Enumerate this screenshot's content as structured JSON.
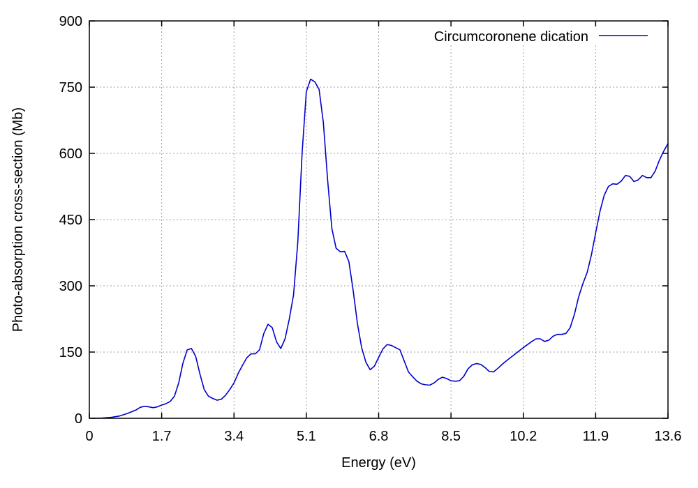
{
  "chart_data": {
    "type": "line",
    "title": "",
    "xlabel": "Energy (eV)",
    "ylabel": "Photo-absorption cross-section (Mb)",
    "xlim": [
      0,
      13.6
    ],
    "ylim": [
      0,
      900
    ],
    "xticks": [
      0,
      1.7,
      3.4,
      5.1,
      6.8,
      8.5,
      10.2,
      11.9,
      13.6
    ],
    "xtick_labels": [
      "0",
      "1.7",
      "3.4",
      "5.1",
      "6.8",
      "8.5",
      "10.2",
      "11.9",
      "13.6"
    ],
    "yticks": [
      0,
      150,
      300,
      450,
      600,
      750,
      900
    ],
    "ytick_labels": [
      "0",
      "150",
      "300",
      "450",
      "600",
      "750",
      "900"
    ],
    "grid": true,
    "legend_position": "top-right",
    "series": [
      {
        "name": "Circumcoronene dication",
        "color": "#0000cc",
        "points": [
          [
            0.1,
            0
          ],
          [
            0.3,
            0.5
          ],
          [
            0.5,
            2
          ],
          [
            0.7,
            5
          ],
          [
            0.9,
            11
          ],
          [
            1.1,
            19
          ],
          [
            1.2,
            25
          ],
          [
            1.3,
            27
          ],
          [
            1.4,
            26
          ],
          [
            1.5,
            24
          ],
          [
            1.6,
            26
          ],
          [
            1.7,
            30
          ],
          [
            1.8,
            33
          ],
          [
            1.9,
            38
          ],
          [
            2.0,
            50
          ],
          [
            2.1,
            80
          ],
          [
            2.2,
            125
          ],
          [
            2.3,
            155
          ],
          [
            2.4,
            158
          ],
          [
            2.5,
            140
          ],
          [
            2.6,
            100
          ],
          [
            2.7,
            65
          ],
          [
            2.8,
            50
          ],
          [
            2.9,
            45
          ],
          [
            3.0,
            41
          ],
          [
            3.1,
            43
          ],
          [
            3.2,
            52
          ],
          [
            3.3,
            65
          ],
          [
            3.4,
            80
          ],
          [
            3.5,
            102
          ],
          [
            3.6,
            120
          ],
          [
            3.7,
            137
          ],
          [
            3.8,
            146
          ],
          [
            3.9,
            146
          ],
          [
            4.0,
            155
          ],
          [
            4.1,
            192
          ],
          [
            4.2,
            213
          ],
          [
            4.3,
            205
          ],
          [
            4.4,
            173
          ],
          [
            4.5,
            158
          ],
          [
            4.6,
            180
          ],
          [
            4.7,
            225
          ],
          [
            4.8,
            280
          ],
          [
            4.9,
            400
          ],
          [
            5.0,
            600
          ],
          [
            5.1,
            740
          ],
          [
            5.2,
            768
          ],
          [
            5.3,
            762
          ],
          [
            5.4,
            745
          ],
          [
            5.5,
            670
          ],
          [
            5.6,
            540
          ],
          [
            5.7,
            430
          ],
          [
            5.8,
            385
          ],
          [
            5.9,
            377
          ],
          [
            6.0,
            378
          ],
          [
            6.1,
            355
          ],
          [
            6.2,
            290
          ],
          [
            6.3,
            215
          ],
          [
            6.4,
            160
          ],
          [
            6.5,
            127
          ],
          [
            6.6,
            110
          ],
          [
            6.7,
            118
          ],
          [
            6.8,
            138
          ],
          [
            6.9,
            157
          ],
          [
            7.0,
            167
          ],
          [
            7.1,
            165
          ],
          [
            7.2,
            160
          ],
          [
            7.3,
            155
          ],
          [
            7.4,
            130
          ],
          [
            7.5,
            105
          ],
          [
            7.6,
            94
          ],
          [
            7.7,
            84
          ],
          [
            7.8,
            78
          ],
          [
            7.9,
            76
          ],
          [
            8.0,
            75
          ],
          [
            8.1,
            80
          ],
          [
            8.2,
            88
          ],
          [
            8.3,
            93
          ],
          [
            8.4,
            90
          ],
          [
            8.5,
            85
          ],
          [
            8.6,
            84
          ],
          [
            8.7,
            85
          ],
          [
            8.8,
            95
          ],
          [
            8.9,
            112
          ],
          [
            9.0,
            121
          ],
          [
            9.1,
            124
          ],
          [
            9.2,
            122
          ],
          [
            9.3,
            115
          ],
          [
            9.4,
            106
          ],
          [
            9.5,
            105
          ],
          [
            9.6,
            113
          ],
          [
            9.7,
            122
          ],
          [
            9.8,
            130
          ],
          [
            10.0,
            145
          ],
          [
            10.2,
            160
          ],
          [
            10.4,
            174
          ],
          [
            10.5,
            180
          ],
          [
            10.6,
            180
          ],
          [
            10.7,
            174
          ],
          [
            10.8,
            177
          ],
          [
            10.9,
            186
          ],
          [
            11.0,
            190
          ],
          [
            11.1,
            190
          ],
          [
            11.2,
            192
          ],
          [
            11.3,
            205
          ],
          [
            11.4,
            235
          ],
          [
            11.5,
            275
          ],
          [
            11.6,
            305
          ],
          [
            11.7,
            330
          ],
          [
            11.8,
            370
          ],
          [
            11.9,
            420
          ],
          [
            12.0,
            468
          ],
          [
            12.1,
            505
          ],
          [
            12.2,
            525
          ],
          [
            12.3,
            531
          ],
          [
            12.4,
            530
          ],
          [
            12.5,
            537
          ],
          [
            12.6,
            550
          ],
          [
            12.7,
            548
          ],
          [
            12.8,
            536
          ],
          [
            12.9,
            540
          ],
          [
            13.0,
            550
          ],
          [
            13.1,
            545
          ],
          [
            13.2,
            545
          ],
          [
            13.3,
            560
          ],
          [
            13.4,
            585
          ],
          [
            13.5,
            605
          ],
          [
            13.6,
            622
          ]
        ]
      }
    ]
  }
}
